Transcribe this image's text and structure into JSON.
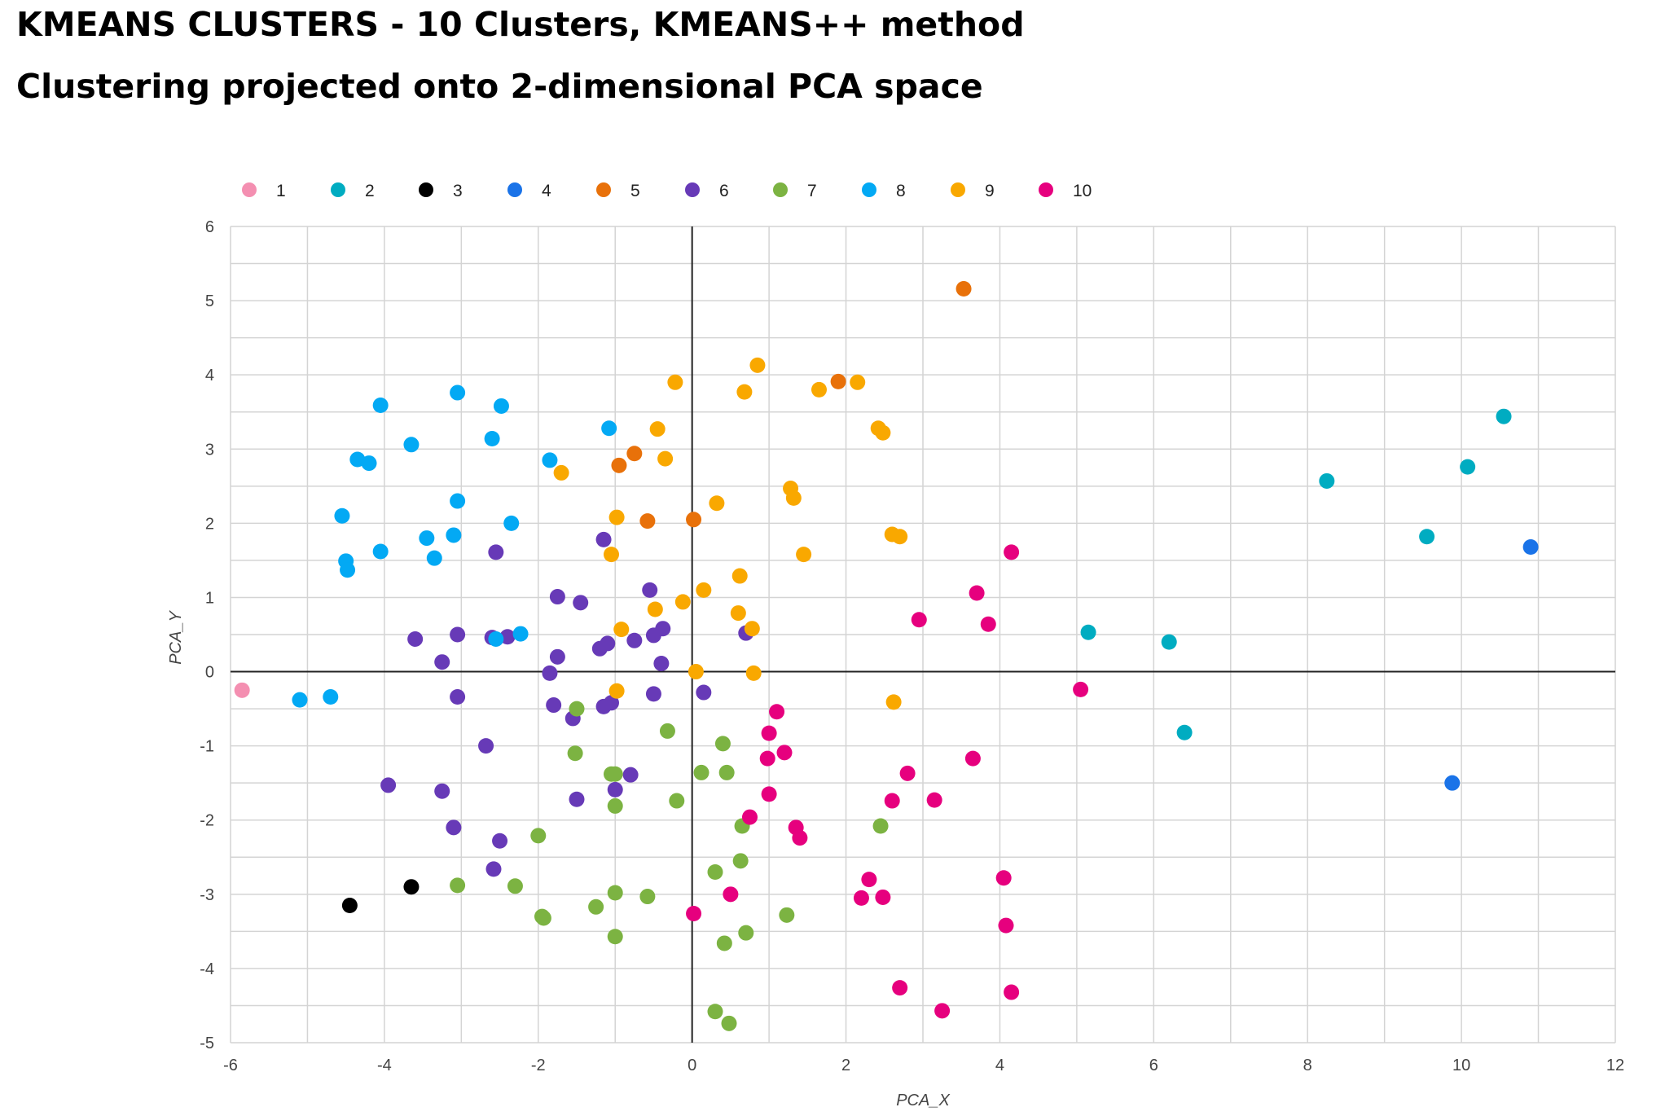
{
  "title": "KMEANS CLUSTERS - 10 Clusters, KMEANS++ method",
  "subtitle": "Clustering projected onto 2-dimensional PCA space",
  "chart_data": {
    "type": "scatter",
    "xlabel": "PCA_X",
    "ylabel": "PCA_Y",
    "xlim": [
      -6,
      12
    ],
    "ylim": [
      -5,
      6
    ],
    "x_ticks": [
      "-6",
      "-4",
      "-2",
      "0",
      "2",
      "4",
      "6",
      "8",
      "10",
      "12"
    ],
    "y_ticks": [
      "-5",
      "-4",
      "-3",
      "-2",
      "-1",
      "0",
      "1",
      "2",
      "3",
      "4",
      "5",
      "6"
    ],
    "grid": true,
    "legend_position": "top",
    "series": [
      {
        "name": "1",
        "color": "#f48fb1",
        "points": [
          [
            -5.85,
            -0.25
          ]
        ]
      },
      {
        "name": "2",
        "color": "#00acc1",
        "points": [
          [
            5.15,
            0.53
          ],
          [
            6.2,
            0.4
          ],
          [
            6.4,
            -0.82
          ],
          [
            8.25,
            2.57
          ],
          [
            9.55,
            1.82
          ],
          [
            10.08,
            2.76
          ],
          [
            10.55,
            3.44
          ]
        ]
      },
      {
        "name": "3",
        "color": "#000000",
        "points": [
          [
            -4.45,
            -3.15
          ],
          [
            -3.65,
            -2.9
          ]
        ]
      },
      {
        "name": "4",
        "color": "#1a73e8",
        "points": [
          [
            10.9,
            1.68
          ],
          [
            9.88,
            -1.5
          ]
        ]
      },
      {
        "name": "5",
        "color": "#e8710a",
        "points": [
          [
            3.53,
            5.16
          ],
          [
            1.9,
            3.91
          ],
          [
            -0.75,
            2.94
          ],
          [
            -0.95,
            2.78
          ],
          [
            -0.58,
            2.03
          ],
          [
            0.02,
            2.05
          ]
        ]
      },
      {
        "name": "6",
        "color": "#673ab7",
        "points": [
          [
            -2.55,
            1.61
          ],
          [
            -1.15,
            1.78
          ],
          [
            -0.55,
            1.1
          ],
          [
            -1.75,
            1.01
          ],
          [
            -1.45,
            0.93
          ],
          [
            -3.6,
            0.44
          ],
          [
            -3.05,
            0.5
          ],
          [
            -3.25,
            0.13
          ],
          [
            -2.6,
            0.46
          ],
          [
            -2.4,
            0.47
          ],
          [
            -1.75,
            0.2
          ],
          [
            -1.85,
            -0.02
          ],
          [
            -1.2,
            0.31
          ],
          [
            -1.1,
            0.38
          ],
          [
            -0.75,
            0.42
          ],
          [
            -0.5,
            0.49
          ],
          [
            -0.38,
            0.58
          ],
          [
            -0.4,
            0.11
          ],
          [
            0.7,
            0.52
          ],
          [
            -3.05,
            -0.34
          ],
          [
            -1.8,
            -0.45
          ],
          [
            -1.55,
            -0.63
          ],
          [
            -1.15,
            -0.47
          ],
          [
            -1.05,
            -0.42
          ],
          [
            -0.5,
            -0.3
          ],
          [
            0.15,
            -0.28
          ],
          [
            -2.68,
            -1.0
          ],
          [
            -3.95,
            -1.53
          ],
          [
            -3.25,
            -1.61
          ],
          [
            -1.0,
            -1.59
          ],
          [
            -0.8,
            -1.39
          ],
          [
            -1.5,
            -1.72
          ],
          [
            -3.1,
            -2.1
          ],
          [
            -2.5,
            -2.28
          ],
          [
            -2.58,
            -2.66
          ]
        ]
      },
      {
        "name": "7",
        "color": "#7cb342",
        "points": [
          [
            -1.5,
            -0.5
          ],
          [
            -0.32,
            -0.8
          ],
          [
            -1.52,
            -1.1
          ],
          [
            -1.05,
            -1.38
          ],
          [
            -1.0,
            -1.38
          ],
          [
            0.4,
            -0.97
          ],
          [
            0.12,
            -1.36
          ],
          [
            0.45,
            -1.36
          ],
          [
            -1.0,
            -1.81
          ],
          [
            -0.2,
            -1.74
          ],
          [
            0.65,
            -2.08
          ],
          [
            2.45,
            -2.08
          ],
          [
            -2.0,
            -2.21
          ],
          [
            0.3,
            -2.7
          ],
          [
            0.63,
            -2.55
          ],
          [
            -3.05,
            -2.88
          ],
          [
            -2.3,
            -2.89
          ],
          [
            -1.0,
            -2.98
          ],
          [
            -0.58,
            -3.03
          ],
          [
            -1.25,
            -3.17
          ],
          [
            -1.95,
            -3.3
          ],
          [
            -1.93,
            -3.32
          ],
          [
            1.23,
            -3.28
          ],
          [
            -1.0,
            -3.57
          ],
          [
            0.7,
            -3.52
          ],
          [
            0.42,
            -3.66
          ],
          [
            0.3,
            -4.58
          ],
          [
            0.48,
            -4.74
          ]
        ]
      },
      {
        "name": "8",
        "color": "#03a9f4",
        "points": [
          [
            -4.05,
            3.59
          ],
          [
            -3.05,
            3.76
          ],
          [
            -2.48,
            3.58
          ],
          [
            -3.65,
            3.06
          ],
          [
            -2.6,
            3.14
          ],
          [
            -1.08,
            3.28
          ],
          [
            -4.35,
            2.86
          ],
          [
            -4.2,
            2.81
          ],
          [
            -1.85,
            2.85
          ],
          [
            -3.05,
            2.3
          ],
          [
            -4.55,
            2.1
          ],
          [
            -2.35,
            2.0
          ],
          [
            -3.45,
            1.8
          ],
          [
            -3.1,
            1.84
          ],
          [
            -4.05,
            1.62
          ],
          [
            -3.35,
            1.53
          ],
          [
            -4.5,
            1.49
          ],
          [
            -4.48,
            1.37
          ],
          [
            -2.23,
            0.51
          ],
          [
            -2.55,
            0.44
          ],
          [
            -5.1,
            -0.38
          ],
          [
            -4.7,
            -0.34
          ]
        ]
      },
      {
        "name": "9",
        "color": "#f9a800",
        "points": [
          [
            -0.22,
            3.9
          ],
          [
            0.68,
            3.77
          ],
          [
            0.85,
            4.13
          ],
          [
            1.65,
            3.8
          ],
          [
            2.15,
            3.9
          ],
          [
            -0.45,
            3.27
          ],
          [
            -0.35,
            2.87
          ],
          [
            2.42,
            3.28
          ],
          [
            2.48,
            3.22
          ],
          [
            -1.7,
            2.68
          ],
          [
            1.28,
            2.47
          ],
          [
            1.32,
            2.34
          ],
          [
            0.32,
            2.27
          ],
          [
            -0.98,
            2.08
          ],
          [
            2.6,
            1.85
          ],
          [
            2.7,
            1.82
          ],
          [
            -1.05,
            1.58
          ],
          [
            1.45,
            1.58
          ],
          [
            0.62,
            1.29
          ],
          [
            0.15,
            1.1
          ],
          [
            -0.12,
            0.94
          ],
          [
            -0.48,
            0.84
          ],
          [
            0.6,
            0.79
          ],
          [
            -0.92,
            0.57
          ],
          [
            0.78,
            0.58
          ],
          [
            0.05,
            0.0
          ],
          [
            0.8,
            -0.02
          ],
          [
            -0.98,
            -0.26
          ],
          [
            2.62,
            -0.41
          ]
        ]
      },
      {
        "name": "10",
        "color": "#e6007e",
        "points": [
          [
            4.15,
            1.61
          ],
          [
            3.7,
            1.06
          ],
          [
            2.95,
            0.7
          ],
          [
            3.85,
            0.64
          ],
          [
            5.05,
            -0.24
          ],
          [
            1.1,
            -0.54
          ],
          [
            1.0,
            -0.83
          ],
          [
            1.2,
            -1.09
          ],
          [
            0.98,
            -1.17
          ],
          [
            3.65,
            -1.17
          ],
          [
            2.8,
            -1.37
          ],
          [
            1.0,
            -1.65
          ],
          [
            2.6,
            -1.74
          ],
          [
            3.15,
            -1.73
          ],
          [
            0.75,
            -1.96
          ],
          [
            1.35,
            -2.1
          ],
          [
            1.4,
            -2.24
          ],
          [
            2.3,
            -2.8
          ],
          [
            4.05,
            -2.78
          ],
          [
            0.5,
            -3.0
          ],
          [
            2.2,
            -3.05
          ],
          [
            2.48,
            -3.04
          ],
          [
            0.02,
            -3.26
          ],
          [
            4.08,
            -3.42
          ],
          [
            2.7,
            -4.26
          ],
          [
            4.15,
            -4.32
          ],
          [
            3.25,
            -4.57
          ]
        ]
      }
    ]
  }
}
